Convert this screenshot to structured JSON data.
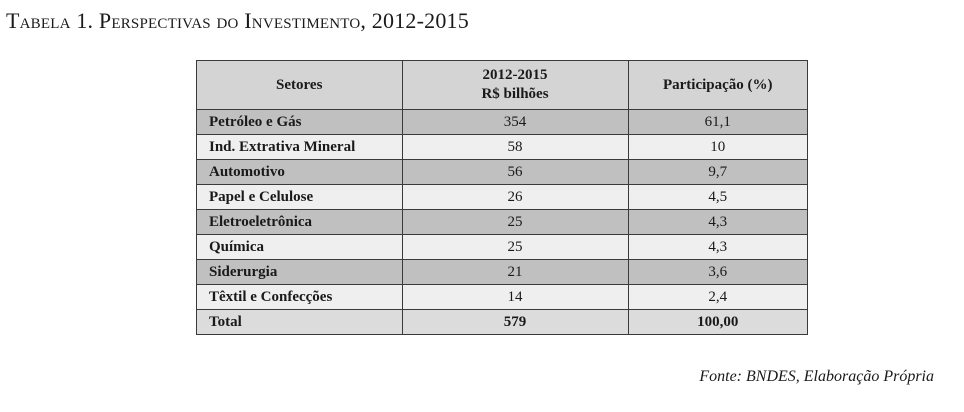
{
  "title": "Tabela 1. Perspectivas do Investimento, 2012-2015",
  "table": {
    "headers": {
      "sector": "Setores",
      "period_line1": "2012-2015",
      "period_line2": "R$ bilhões",
      "share": "Participação (%)"
    },
    "rows": [
      {
        "sector": "Petróleo e Gás",
        "value": "354",
        "share": "61,1"
      },
      {
        "sector": "Ind. Extrativa Mineral",
        "value": "58",
        "share": "10"
      },
      {
        "sector": "Automotivo",
        "value": "56",
        "share": "9,7"
      },
      {
        "sector": "Papel e Celulose",
        "value": "26",
        "share": "4,5"
      },
      {
        "sector": "Eletroeletrônica",
        "value": "25",
        "share": "4,3"
      },
      {
        "sector": "Química",
        "value": "25",
        "share": "4,3"
      },
      {
        "sector": "Siderurgia",
        "value": "21",
        "share": "3,6"
      },
      {
        "sector": "Têxtil e Confecções",
        "value": "14",
        "share": "2,4"
      }
    ],
    "total": {
      "label": "Total",
      "value": "579",
      "share": "100,00"
    }
  },
  "source": "Fonte: BNDES, Elaboração Própria"
}
